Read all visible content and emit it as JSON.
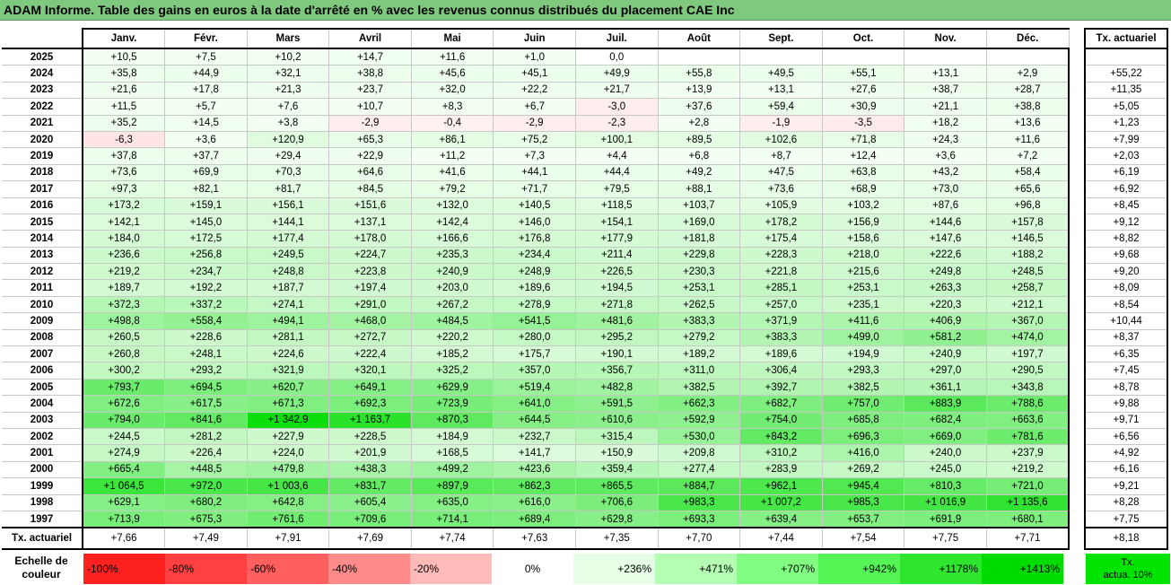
{
  "title": "ADAM Informe. Table des gains en euros à la date d'arrêté en % avec les revenus connus distribués du placement CAE Inc",
  "months": [
    "Janv.",
    "Févr.",
    "Mars",
    "Avril",
    "Mai",
    "Juin",
    "Juil.",
    "Août",
    "Sept.",
    "Oct.",
    "Nov.",
    "Déc."
  ],
  "side_header": "Tx. actuariel",
  "rows": [
    {
      "year": "2025",
      "values": [
        "+10,5",
        "+7,5",
        "+10,2",
        "+14,7",
        "+11,6",
        "+1,0",
        "0,0",
        "",
        "",
        "",
        "",
        ""
      ],
      "tx": ""
    },
    {
      "year": "2024",
      "values": [
        "+35,8",
        "+44,9",
        "+32,1",
        "+38,8",
        "+45,6",
        "+45,1",
        "+49,9",
        "+55,8",
        "+49,5",
        "+55,1",
        "+13,1",
        "+2,9"
      ],
      "tx": "+55,22"
    },
    {
      "year": "2023",
      "values": [
        "+21,6",
        "+17,8",
        "+21,3",
        "+23,7",
        "+32,0",
        "+22,2",
        "+21,7",
        "+13,9",
        "+13,1",
        "+27,6",
        "+38,7",
        "+28,7"
      ],
      "tx": "+11,35"
    },
    {
      "year": "2022",
      "values": [
        "+11,5",
        "+5,7",
        "+7,6",
        "+10,7",
        "+8,3",
        "+6,7",
        "-3,0",
        "+37,6",
        "+59,4",
        "+30,9",
        "+21,1",
        "+38,8"
      ],
      "tx": "+5,05"
    },
    {
      "year": "2021",
      "values": [
        "+35,2",
        "+14,5",
        "+3,8",
        "-2,9",
        "-0,4",
        "-2,9",
        "-2,3",
        "+2,8",
        "-1,9",
        "-3,5",
        "+18,2",
        "+13,6"
      ],
      "tx": "+1,23"
    },
    {
      "year": "2020",
      "values": [
        "-6,3",
        "+3,6",
        "+120,9",
        "+65,3",
        "+86,1",
        "+75,2",
        "+100,1",
        "+89,5",
        "+102,6",
        "+71,8",
        "+24,3",
        "+11,6"
      ],
      "tx": "+7,99"
    },
    {
      "year": "2019",
      "values": [
        "+37,8",
        "+37,7",
        "+29,4",
        "+22,9",
        "+11,2",
        "+7,3",
        "+4,4",
        "+6,8",
        "+8,7",
        "+12,4",
        "+3,6",
        "+7,2"
      ],
      "tx": "+2,03"
    },
    {
      "year": "2018",
      "values": [
        "+73,6",
        "+69,9",
        "+70,3",
        "+64,6",
        "+41,6",
        "+44,1",
        "+44,4",
        "+49,2",
        "+47,5",
        "+63,8",
        "+43,2",
        "+58,4"
      ],
      "tx": "+6,19"
    },
    {
      "year": "2017",
      "values": [
        "+97,3",
        "+82,1",
        "+81,7",
        "+84,5",
        "+79,2",
        "+71,7",
        "+79,5",
        "+88,1",
        "+73,6",
        "+68,9",
        "+73,0",
        "+65,6"
      ],
      "tx": "+6,92"
    },
    {
      "year": "2016",
      "values": [
        "+173,2",
        "+159,1",
        "+156,1",
        "+151,6",
        "+132,0",
        "+140,5",
        "+118,5",
        "+103,7",
        "+105,9",
        "+103,2",
        "+87,6",
        "+96,8"
      ],
      "tx": "+8,45"
    },
    {
      "year": "2015",
      "values": [
        "+142,1",
        "+145,0",
        "+144,1",
        "+137,1",
        "+142,4",
        "+146,0",
        "+154,1",
        "+169,0",
        "+178,2",
        "+156,9",
        "+144,6",
        "+157,8"
      ],
      "tx": "+9,12"
    },
    {
      "year": "2014",
      "values": [
        "+184,0",
        "+172,5",
        "+177,4",
        "+178,0",
        "+166,6",
        "+176,8",
        "+177,9",
        "+181,8",
        "+175,4",
        "+158,6",
        "+147,6",
        "+146,5"
      ],
      "tx": "+8,82"
    },
    {
      "year": "2013",
      "values": [
        "+236,6",
        "+256,8",
        "+249,5",
        "+224,7",
        "+235,3",
        "+234,4",
        "+211,4",
        "+229,8",
        "+228,3",
        "+218,0",
        "+222,6",
        "+188,2"
      ],
      "tx": "+9,68"
    },
    {
      "year": "2012",
      "values": [
        "+219,2",
        "+234,7",
        "+248,8",
        "+223,8",
        "+240,9",
        "+248,9",
        "+226,5",
        "+230,3",
        "+221,8",
        "+215,6",
        "+249,8",
        "+248,5"
      ],
      "tx": "+9,20"
    },
    {
      "year": "2011",
      "values": [
        "+189,7",
        "+192,2",
        "+187,7",
        "+197,4",
        "+203,0",
        "+189,6",
        "+194,5",
        "+253,1",
        "+285,1",
        "+253,1",
        "+263,3",
        "+258,7"
      ],
      "tx": "+8,09"
    },
    {
      "year": "2010",
      "values": [
        "+372,3",
        "+337,2",
        "+274,1",
        "+291,0",
        "+267,2",
        "+278,9",
        "+271,8",
        "+262,5",
        "+257,0",
        "+235,1",
        "+220,3",
        "+212,1"
      ],
      "tx": "+8,54"
    },
    {
      "year": "2009",
      "values": [
        "+498,8",
        "+558,4",
        "+494,1",
        "+468,0",
        "+484,5",
        "+541,5",
        "+481,6",
        "+383,3",
        "+371,9",
        "+411,6",
        "+406,9",
        "+367,0"
      ],
      "tx": "+10,44"
    },
    {
      "year": "2008",
      "values": [
        "+260,5",
        "+228,6",
        "+281,1",
        "+272,7",
        "+220,2",
        "+280,0",
        "+295,2",
        "+279,2",
        "+383,3",
        "+499,0",
        "+581,2",
        "+474,0"
      ],
      "tx": "+8,37"
    },
    {
      "year": "2007",
      "values": [
        "+260,8",
        "+248,1",
        "+224,6",
        "+222,4",
        "+185,2",
        "+175,7",
        "+190,1",
        "+189,2",
        "+189,6",
        "+194,9",
        "+240,9",
        "+197,7"
      ],
      "tx": "+6,35"
    },
    {
      "year": "2006",
      "values": [
        "+300,2",
        "+293,2",
        "+321,9",
        "+320,1",
        "+325,2",
        "+357,0",
        "+356,7",
        "+311,0",
        "+306,4",
        "+293,3",
        "+297,0",
        "+290,5"
      ],
      "tx": "+7,45"
    },
    {
      "year": "2005",
      "values": [
        "+793,7",
        "+694,5",
        "+620,7",
        "+649,1",
        "+629,9",
        "+519,4",
        "+482,8",
        "+382,5",
        "+392,7",
        "+382,5",
        "+361,1",
        "+343,8"
      ],
      "tx": "+8,78"
    },
    {
      "year": "2004",
      "values": [
        "+672,6",
        "+617,5",
        "+671,3",
        "+692,3",
        "+723,9",
        "+641,0",
        "+591,5",
        "+662,3",
        "+682,7",
        "+757,0",
        "+883,9",
        "+788,6"
      ],
      "tx": "+9,88"
    },
    {
      "year": "2003",
      "values": [
        "+794,0",
        "+841,6",
        "+1 342,9",
        "+1 163,7",
        "+870,3",
        "+644,5",
        "+610,6",
        "+592,9",
        "+754,0",
        "+685,8",
        "+682,4",
        "+663,6"
      ],
      "tx": "+9,71"
    },
    {
      "year": "2002",
      "values": [
        "+244,5",
        "+281,2",
        "+227,9",
        "+228,5",
        "+184,9",
        "+232,7",
        "+315,4",
        "+530,0",
        "+843,2",
        "+696,3",
        "+669,0",
        "+781,6"
      ],
      "tx": "+6,56"
    },
    {
      "year": "2001",
      "values": [
        "+274,9",
        "+226,4",
        "+224,0",
        "+201,9",
        "+168,5",
        "+141,7",
        "+150,9",
        "+209,8",
        "+310,2",
        "+416,0",
        "+240,0",
        "+237,9"
      ],
      "tx": "+4,92"
    },
    {
      "year": "2000",
      "values": [
        "+665,4",
        "+448,5",
        "+479,8",
        "+438,3",
        "+499,2",
        "+423,6",
        "+359,4",
        "+277,4",
        "+283,9",
        "+269,2",
        "+245,0",
        "+219,2"
      ],
      "tx": "+6,16"
    },
    {
      "year": "1999",
      "values": [
        "+1 064,5",
        "+972,0",
        "+1 003,6",
        "+831,7",
        "+897,9",
        "+862,3",
        "+865,5",
        "+884,7",
        "+962,1",
        "+945,4",
        "+810,3",
        "+721,0"
      ],
      "tx": "+9,21"
    },
    {
      "year": "1998",
      "values": [
        "+629,1",
        "+680,2",
        "+642,8",
        "+605,4",
        "+635,0",
        "+616,0",
        "+706,6",
        "+983,3",
        "+1 007,2",
        "+985,3",
        "+1 016,9",
        "+1 135,6"
      ],
      "tx": "+8,28"
    },
    {
      "year": "1997",
      "values": [
        "+713,9",
        "+675,3",
        "+761,6",
        "+709,6",
        "+714,1",
        "+689,4",
        "+629,8",
        "+693,3",
        "+639,4",
        "+653,7",
        "+691,9",
        "+680,1"
      ],
      "tx": "+7,75"
    }
  ],
  "footer": {
    "label": "Tx. actuariel",
    "values": [
      "+7,66",
      "+7,49",
      "+7,91",
      "+7,69",
      "+7,74",
      "+7,63",
      "+7,35",
      "+7,70",
      "+7,44",
      "+7,54",
      "+7,75",
      "+7,71"
    ],
    "tx": "+8,18"
  },
  "legend": {
    "label_line1": "Echelle de",
    "label_line2": "couleur",
    "items": [
      {
        "text": "-100%",
        "color": "#ff2020"
      },
      {
        "text": "-80%",
        "color": "#ff4040"
      },
      {
        "text": "-60%",
        "color": "#ff5f5f"
      },
      {
        "text": "-40%",
        "color": "#ff8a8a"
      },
      {
        "text": "-20%",
        "color": "#ffbaba"
      },
      {
        "text": "0%",
        "color": "#ffffff"
      },
      {
        "text": "+236%",
        "color": "#e6ffe6"
      },
      {
        "text": "+471%",
        "color": "#b4ffb4"
      },
      {
        "text": "+707%",
        "color": "#82ff82"
      },
      {
        "text": "+942%",
        "color": "#55f555"
      },
      {
        "text": "+1178%",
        "color": "#2ee62e"
      },
      {
        "text": "+1413%",
        "color": "#00dc00"
      }
    ],
    "best_line1": "Tx.",
    "best_line2": "actua. 10%"
  }
}
